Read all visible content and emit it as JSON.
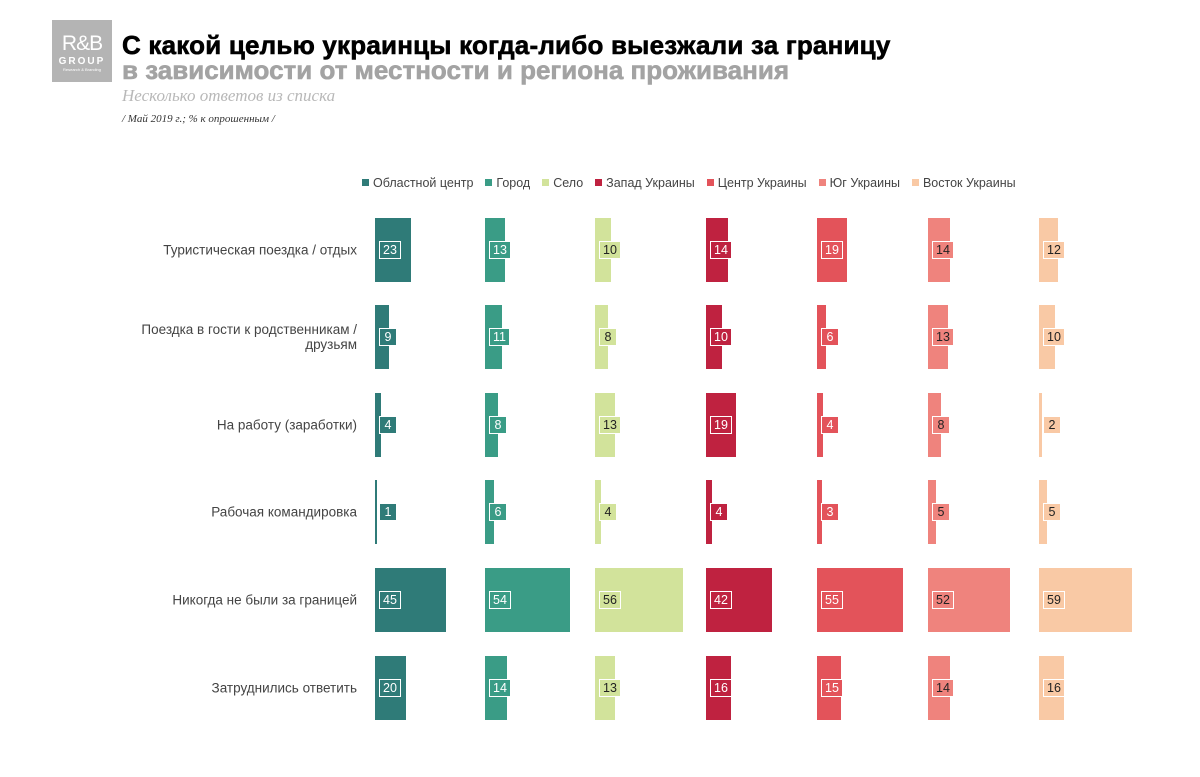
{
  "logo": {
    "line1": "R&B",
    "line2": "GROUP",
    "line3": "Research & Branding"
  },
  "header": {
    "title": "С какой целью украинцы когда-либо выезжали за границу",
    "subtitle": "в зависимости от местности и региона проживания",
    "note": "Несколько ответов из списка",
    "source": "/ Май 2019 г.; % к опрошенным /"
  },
  "chart_data": {
    "type": "bar",
    "orientation": "horizontal-small-multiples",
    "legend_placement": "top",
    "categories": [
      "Туристическая поездка / отдых",
      "Поездка в гости к родственникам / друзьям",
      "На работу (заработки)",
      "Рабочая командировка",
      "Никогда не были за границей",
      "Затруднились ответить"
    ],
    "series": [
      {
        "name": "Областной центр",
        "color": "#2f7b78",
        "values": [
          23,
          9,
          4,
          1,
          45,
          20
        ]
      },
      {
        "name": "Город",
        "color": "#3a9c86",
        "values": [
          13,
          11,
          8,
          6,
          54,
          14
        ]
      },
      {
        "name": "Село",
        "color": "#d2e39b",
        "values": [
          10,
          8,
          13,
          4,
          56,
          13
        ]
      },
      {
        "name": "Запад Украины",
        "color": "#bf2240",
        "values": [
          14,
          10,
          19,
          4,
          42,
          16
        ]
      },
      {
        "name": "Центр Украины",
        "color": "#e3535a",
        "values": [
          19,
          6,
          4,
          3,
          55,
          15
        ]
      },
      {
        "name": "Юг Украины",
        "color": "#ef837d",
        "values": [
          14,
          13,
          8,
          5,
          52,
          14
        ]
      },
      {
        "name": "Восток Украины",
        "color": "#f9c9a5",
        "values": [
          12,
          10,
          2,
          5,
          59,
          16
        ]
      }
    ]
  }
}
